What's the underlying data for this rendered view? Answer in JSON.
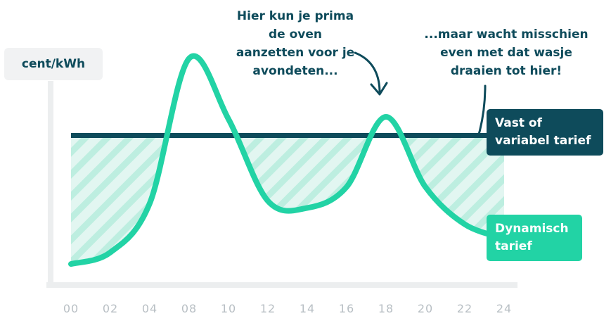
{
  "chart_data": {
    "type": "line",
    "annotations": [
      "Hier kun je prima de oven aanzetten voor je avondeten...",
      "...maar wacht misschien even met dat wasje draaien tot hier!"
    ],
    "ylabel": "cent/kWh",
    "categories": [
      "00",
      "02",
      "04",
      "08",
      "10",
      "12",
      "14",
      "16",
      "18",
      "20",
      "22",
      "24"
    ],
    "ylim": [
      0,
      100
    ],
    "series": [
      {
        "name": "Dynamisch tarief",
        "color": "#22d3a5",
        "values": [
          9,
          14,
          35,
          97,
          71,
          36,
          33,
          42,
          72,
          42,
          26,
          20
        ]
      },
      {
        "name": "Vast of variabel tarief",
        "color": "#0e4b5b",
        "values": [
          64,
          64,
          64,
          64,
          64,
          64,
          64,
          64,
          64,
          64,
          64,
          64
        ]
      }
    ]
  }
}
